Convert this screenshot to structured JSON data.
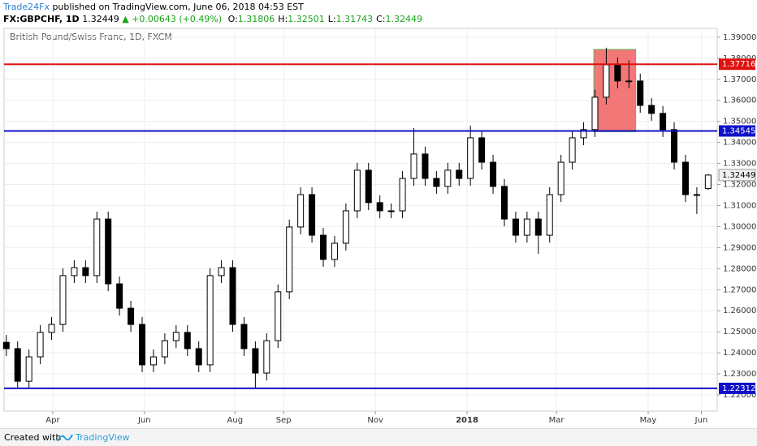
{
  "chart_data": {
    "type": "candlestick",
    "title": "British Pound/Swiss Franc, 1D, FXCM",
    "header": {
      "publisher": "Trade24Fx",
      "published": "published on TradingView.com, June 06, 2018 04:53 EST",
      "symbol": "FX:GBPCHF, 1D",
      "last": "1.32449",
      "change": "▲ +0.00643 (+0.49%)",
      "ohlc": [
        {
          "label": "O:",
          "value": "1.31806"
        },
        {
          "label": "H:",
          "value": "1.32501"
        },
        {
          "label": "L:",
          "value": "1.31743"
        },
        {
          "label": "C:",
          "value": "1.32449"
        }
      ]
    },
    "footer": {
      "created": "Created with",
      "brand": "TradingView"
    },
    "open": [
      1.245,
      1.242,
      1.2265,
      1.2381,
      1.2497,
      1.2535,
      1.2767,
      1.2805,
      1.2767,
      1.3036,
      1.2728,
      1.2612,
      1.2535,
      1.2343,
      1.2381,
      1.2458,
      1.2497,
      1.242,
      1.2343,
      1.2767,
      1.2805,
      1.2535,
      1.242,
      1.2304,
      1.2458,
      1.269,
      1.2998,
      1.3152,
      1.2959,
      1.2844,
      1.2921,
      1.3075,
      1.3268,
      1.3114,
      1.3075,
      1.3075,
      1.3229,
      1.3345,
      1.3229,
      1.3191,
      1.3268,
      1.3229,
      1.3422,
      1.3306,
      1.3191,
      1.3036,
      1.2959,
      1.3036,
      1.2959,
      1.3152,
      1.3306,
      1.3422,
      1.3461,
      1.3615,
      1.3769,
      1.3692,
      1.3692,
      1.3576,
      1.3538,
      1.3461,
      1.3306,
      1.3152,
      1.31806
    ],
    "high": [
      1.2485,
      1.2455,
      1.2416,
      1.2532,
      1.257,
      1.2802,
      1.284,
      1.284,
      1.3071,
      1.3071,
      1.2763,
      1.2647,
      1.257,
      1.2416,
      1.2493,
      1.2532,
      1.2532,
      1.2455,
      1.2802,
      1.284,
      1.284,
      1.257,
      1.2455,
      1.2493,
      1.2725,
      1.3033,
      1.3187,
      1.3187,
      1.2994,
      1.2956,
      1.311,
      1.3303,
      1.3303,
      1.3149,
      1.311,
      1.3264,
      1.3468,
      1.338,
      1.3264,
      1.3303,
      1.3303,
      1.348,
      1.3457,
      1.3341,
      1.3226,
      1.3071,
      1.3071,
      1.3071,
      1.3187,
      1.3341,
      1.3457,
      1.3496,
      1.365,
      1.385,
      1.3804,
      1.379,
      1.3727,
      1.3611,
      1.3573,
      1.3496,
      1.3341,
      1.3187,
      1.32501
    ],
    "low": [
      1.2385,
      1.223,
      1.223,
      1.2346,
      1.2462,
      1.25,
      1.2732,
      1.2732,
      1.2732,
      1.2693,
      1.2577,
      1.25,
      1.2308,
      1.2308,
      1.2346,
      1.2423,
      1.2385,
      1.2308,
      1.2308,
      1.2732,
      1.25,
      1.2385,
      1.2231,
      1.2269,
      1.2423,
      1.2655,
      1.2963,
      1.2924,
      1.2809,
      1.2809,
      1.2886,
      1.304,
      1.3079,
      1.304,
      1.304,
      1.304,
      1.3194,
      1.3194,
      1.3156,
      1.3156,
      1.3194,
      1.3194,
      1.3271,
      1.3156,
      1.3001,
      1.2924,
      1.2924,
      1.287,
      1.2924,
      1.3117,
      1.3271,
      1.3387,
      1.3426,
      1.358,
      1.3657,
      1.3657,
      1.3541,
      1.3503,
      1.3426,
      1.3271,
      1.3117,
      1.306,
      1.31743
    ],
    "close": [
      1.242,
      1.2265,
      1.2381,
      1.2497,
      1.2535,
      1.2767,
      1.2805,
      1.2767,
      1.3036,
      1.2728,
      1.2612,
      1.2535,
      1.2343,
      1.2381,
      1.2458,
      1.2497,
      1.242,
      1.2343,
      1.2767,
      1.2805,
      1.2535,
      1.242,
      1.2304,
      1.2458,
      1.269,
      1.2998,
      1.3152,
      1.2959,
      1.2844,
      1.2921,
      1.3075,
      1.3268,
      1.3114,
      1.3075,
      1.3075,
      1.3229,
      1.3345,
      1.3229,
      1.3191,
      1.3268,
      1.3229,
      1.3422,
      1.3306,
      1.3191,
      1.3036,
      1.2959,
      1.3036,
      1.2959,
      1.3152,
      1.3306,
      1.3422,
      1.3461,
      1.3615,
      1.3769,
      1.3692,
      1.3692,
      1.3576,
      1.3538,
      1.3461,
      1.3306,
      1.3152,
      1.3152,
      1.32449
    ],
    "up_color": "#ffffff",
    "down_color": "#000000",
    "ylim": [
      1.2123,
      1.3942
    ],
    "yticks": [
      {
        "value": 1.22,
        "label": "1.22000"
      },
      {
        "value": 1.23,
        "label": "1.23000"
      },
      {
        "value": 1.24,
        "label": "1.24000"
      },
      {
        "value": 1.25,
        "label": "1.25000"
      },
      {
        "value": 1.26,
        "label": "1.26000"
      },
      {
        "value": 1.27,
        "label": "1.27000"
      },
      {
        "value": 1.28,
        "label": "1.28000"
      },
      {
        "value": 1.29,
        "label": "1.29000"
      },
      {
        "value": 1.3,
        "label": "1.30000"
      },
      {
        "value": 1.31,
        "label": "1.31000"
      },
      {
        "value": 1.32,
        "label": "1.32000"
      },
      {
        "value": 1.33,
        "label": "1.33000"
      },
      {
        "value": 1.34,
        "label": "1.34000"
      },
      {
        "value": 1.35,
        "label": "1.35000"
      },
      {
        "value": 1.36,
        "label": "1.36000"
      },
      {
        "value": 1.37,
        "label": "1.37000"
      },
      {
        "value": 1.38,
        "label": "1.38000"
      },
      {
        "value": 1.39,
        "label": "1.39000"
      }
    ],
    "xlim": [
      -0.2,
      62.8
    ],
    "xticks": [
      {
        "value": 4.1,
        "label": "Apr"
      },
      {
        "value": 12.2,
        "label": "Jun"
      },
      {
        "value": 20.2,
        "label": "Aug"
      },
      {
        "value": 24.5,
        "label": "Sep"
      },
      {
        "value": 32.6,
        "label": "Nov"
      },
      {
        "value": 40.7,
        "label": "2018"
      },
      {
        "value": 48.6,
        "label": "Mar"
      },
      {
        "value": 56.7,
        "label": "May"
      },
      {
        "value": 61.4,
        "label": "Jun"
      }
    ],
    "grid": true,
    "levels": [
      {
        "value": 1.37716,
        "color": "#e01010"
      },
      {
        "value": 1.34545,
        "color": "#1010c8"
      },
      {
        "value": 1.22312,
        "color": "#1010c8"
      }
    ],
    "zone": {
      "x0": 51.9,
      "x1": 55.6,
      "y0": 1.3451,
      "y1": 1.3842,
      "color": "#f06060",
      "border": "#5cb85c"
    }
  }
}
